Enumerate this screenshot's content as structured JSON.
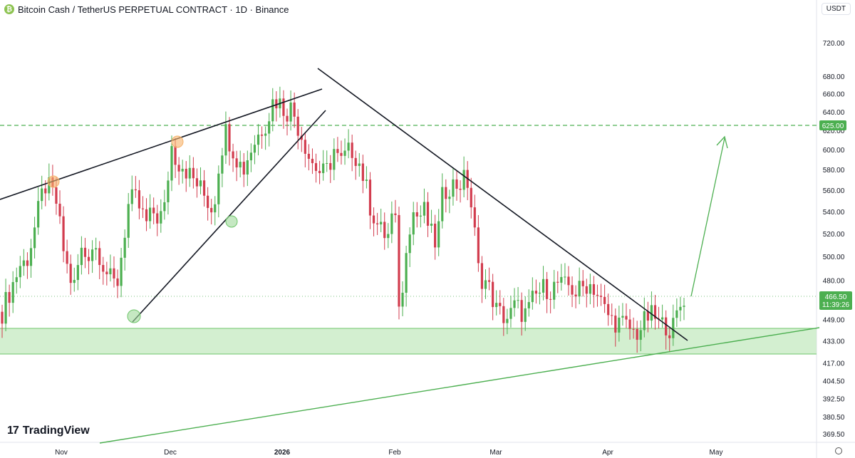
{
  "header": {
    "icon_glyph": "₿",
    "title": "Bitcoin Cash / TetherUS PERPETUAL CONTRACT · 1D · Binance",
    "currency_button": "USDT"
  },
  "branding": {
    "logo_mark": "17",
    "logo_text": "TradingView"
  },
  "colors": {
    "up": "#26a69a",
    "up_candle": "#4caf50",
    "down": "#ef5350",
    "down_candle": "#d23c4e",
    "zone": "#c8ebc4",
    "zone_line": "#6ec56a",
    "trend_green": "#4caf50",
    "target_line": "#4caf50",
    "resistance": "#131722",
    "price_label": "#4caf50",
    "orange_marker": "#f6b26b",
    "green_marker": "#9ed99a"
  },
  "chart_data": {
    "type": "candlestick",
    "symbol": "Bitcoin Cash / TetherUS PERPETUAL CONTRACT",
    "interval": "1D",
    "exchange": "Binance",
    "y_ticks": [
      "720.00",
      "680.00",
      "660.00",
      "640.00",
      "620.00",
      "600.00",
      "580.00",
      "560.00",
      "540.00",
      "520.00",
      "500.00",
      "480.00",
      "449.00",
      "433.00",
      "417.00",
      "404.50",
      "392.50",
      "380.50",
      "369.50"
    ],
    "x_ticks": [
      "Nov",
      "Dec",
      "2026",
      "Feb",
      "Mar",
      "Apr",
      "May"
    ],
    "ylim": [
      360,
      750
    ],
    "scale": "log",
    "current_price": "466.50",
    "countdown": "11:39:26",
    "target_level": "625.00",
    "support_zone": [
      423,
      449
    ],
    "close_path": [
      [
        0,
        455
      ],
      [
        5,
        468
      ],
      [
        10,
        480
      ],
      [
        15,
        493
      ],
      [
        20,
        495
      ],
      [
        25,
        515
      ],
      [
        30,
        540
      ],
      [
        35,
        565
      ],
      [
        40,
        560
      ],
      [
        45,
        548
      ],
      [
        50,
        510
      ],
      [
        55,
        485
      ],
      [
        60,
        475
      ],
      [
        65,
        505
      ],
      [
        70,
        500
      ],
      [
        75,
        510
      ],
      [
        80,
        505
      ],
      [
        85,
        490
      ],
      [
        90,
        480
      ],
      [
        95,
        475
      ],
      [
        100,
        510
      ],
      [
        105,
        548
      ],
      [
        110,
        552
      ],
      [
        115,
        540
      ],
      [
        120,
        528
      ],
      [
        125,
        540
      ],
      [
        130,
        533
      ],
      [
        135,
        543
      ],
      [
        140,
        605
      ],
      [
        145,
        588
      ],
      [
        150,
        585
      ],
      [
        155,
        575
      ],
      [
        160,
        568
      ],
      [
        165,
        560
      ],
      [
        170,
        550
      ],
      [
        175,
        540
      ],
      [
        180,
        590
      ],
      [
        185,
        620
      ],
      [
        190,
        605
      ],
      [
        195,
        590
      ],
      [
        200,
        580
      ],
      [
        205,
        598
      ],
      [
        210,
        610
      ],
      [
        215,
        622
      ],
      [
        220,
        632
      ],
      [
        225,
        655
      ],
      [
        230,
        650
      ],
      [
        235,
        640
      ],
      [
        240,
        645
      ],
      [
        245,
        625
      ],
      [
        250,
        610
      ],
      [
        255,
        590
      ],
      [
        260,
        582
      ],
      [
        265,
        575
      ],
      [
        270,
        580
      ],
      [
        275,
        600
      ],
      [
        280,
        585
      ],
      [
        285,
        595
      ],
      [
        290,
        600
      ],
      [
        295,
        590
      ],
      [
        300,
        570
      ],
      [
        305,
        545
      ],
      [
        310,
        530
      ],
      [
        315,
        520
      ],
      [
        320,
        518
      ],
      [
        325,
        545
      ],
      [
        330,
        440
      ],
      [
        335,
        515
      ],
      [
        340,
        540
      ],
      [
        345,
        535
      ],
      [
        350,
        540
      ],
      [
        355,
        520
      ],
      [
        360,
        510
      ],
      [
        365,
        555
      ],
      [
        370,
        565
      ],
      [
        375,
        565
      ],
      [
        380,
        567
      ],
      [
        385,
        572
      ],
      [
        390,
        535
      ],
      [
        395,
        485
      ],
      [
        400,
        480
      ],
      [
        405,
        470
      ],
      [
        410,
        455
      ],
      [
        415,
        452
      ],
      [
        420,
        450
      ],
      [
        425,
        460
      ],
      [
        430,
        455
      ],
      [
        435,
        453
      ],
      [
        440,
        465
      ],
      [
        445,
        470
      ],
      [
        450,
        475
      ],
      [
        455,
        472
      ],
      [
        460,
        478
      ],
      [
        465,
        474
      ],
      [
        470,
        476
      ],
      [
        475,
        470
      ],
      [
        480,
        473
      ],
      [
        485,
        478
      ],
      [
        490,
        475
      ],
      [
        495,
        465
      ],
      [
        500,
        455
      ],
      [
        505,
        449
      ],
      [
        510,
        447
      ],
      [
        515,
        445
      ],
      [
        520,
        442
      ],
      [
        525,
        438
      ],
      [
        530,
        444
      ],
      [
        535,
        451
      ],
      [
        540,
        452
      ],
      [
        545,
        444
      ],
      [
        550,
        446
      ],
      [
        555,
        440
      ],
      [
        560,
        455
      ],
      [
        565,
        466.5
      ]
    ],
    "series": [
      {
        "name": "",
        "type": "trendline-support",
        "points": [
          [
            0,
            430
          ],
          [
            150,
            470
          ],
          [
            260,
            590
          ],
          [
            300,
            637
          ]
        ]
      },
      {
        "name": "",
        "type": "trendline-resistance",
        "points": [
          [
            280,
            700
          ],
          [
            560,
            446
          ]
        ]
      },
      {
        "name": "",
        "type": "trendline-rising",
        "points": [
          [
            60,
            370
          ],
          [
            610,
            452
          ]
        ]
      },
      {
        "name": "",
        "type": "target-arrow",
        "points": [
          [
            575,
            470
          ],
          [
            600,
            612
          ]
        ]
      }
    ]
  }
}
